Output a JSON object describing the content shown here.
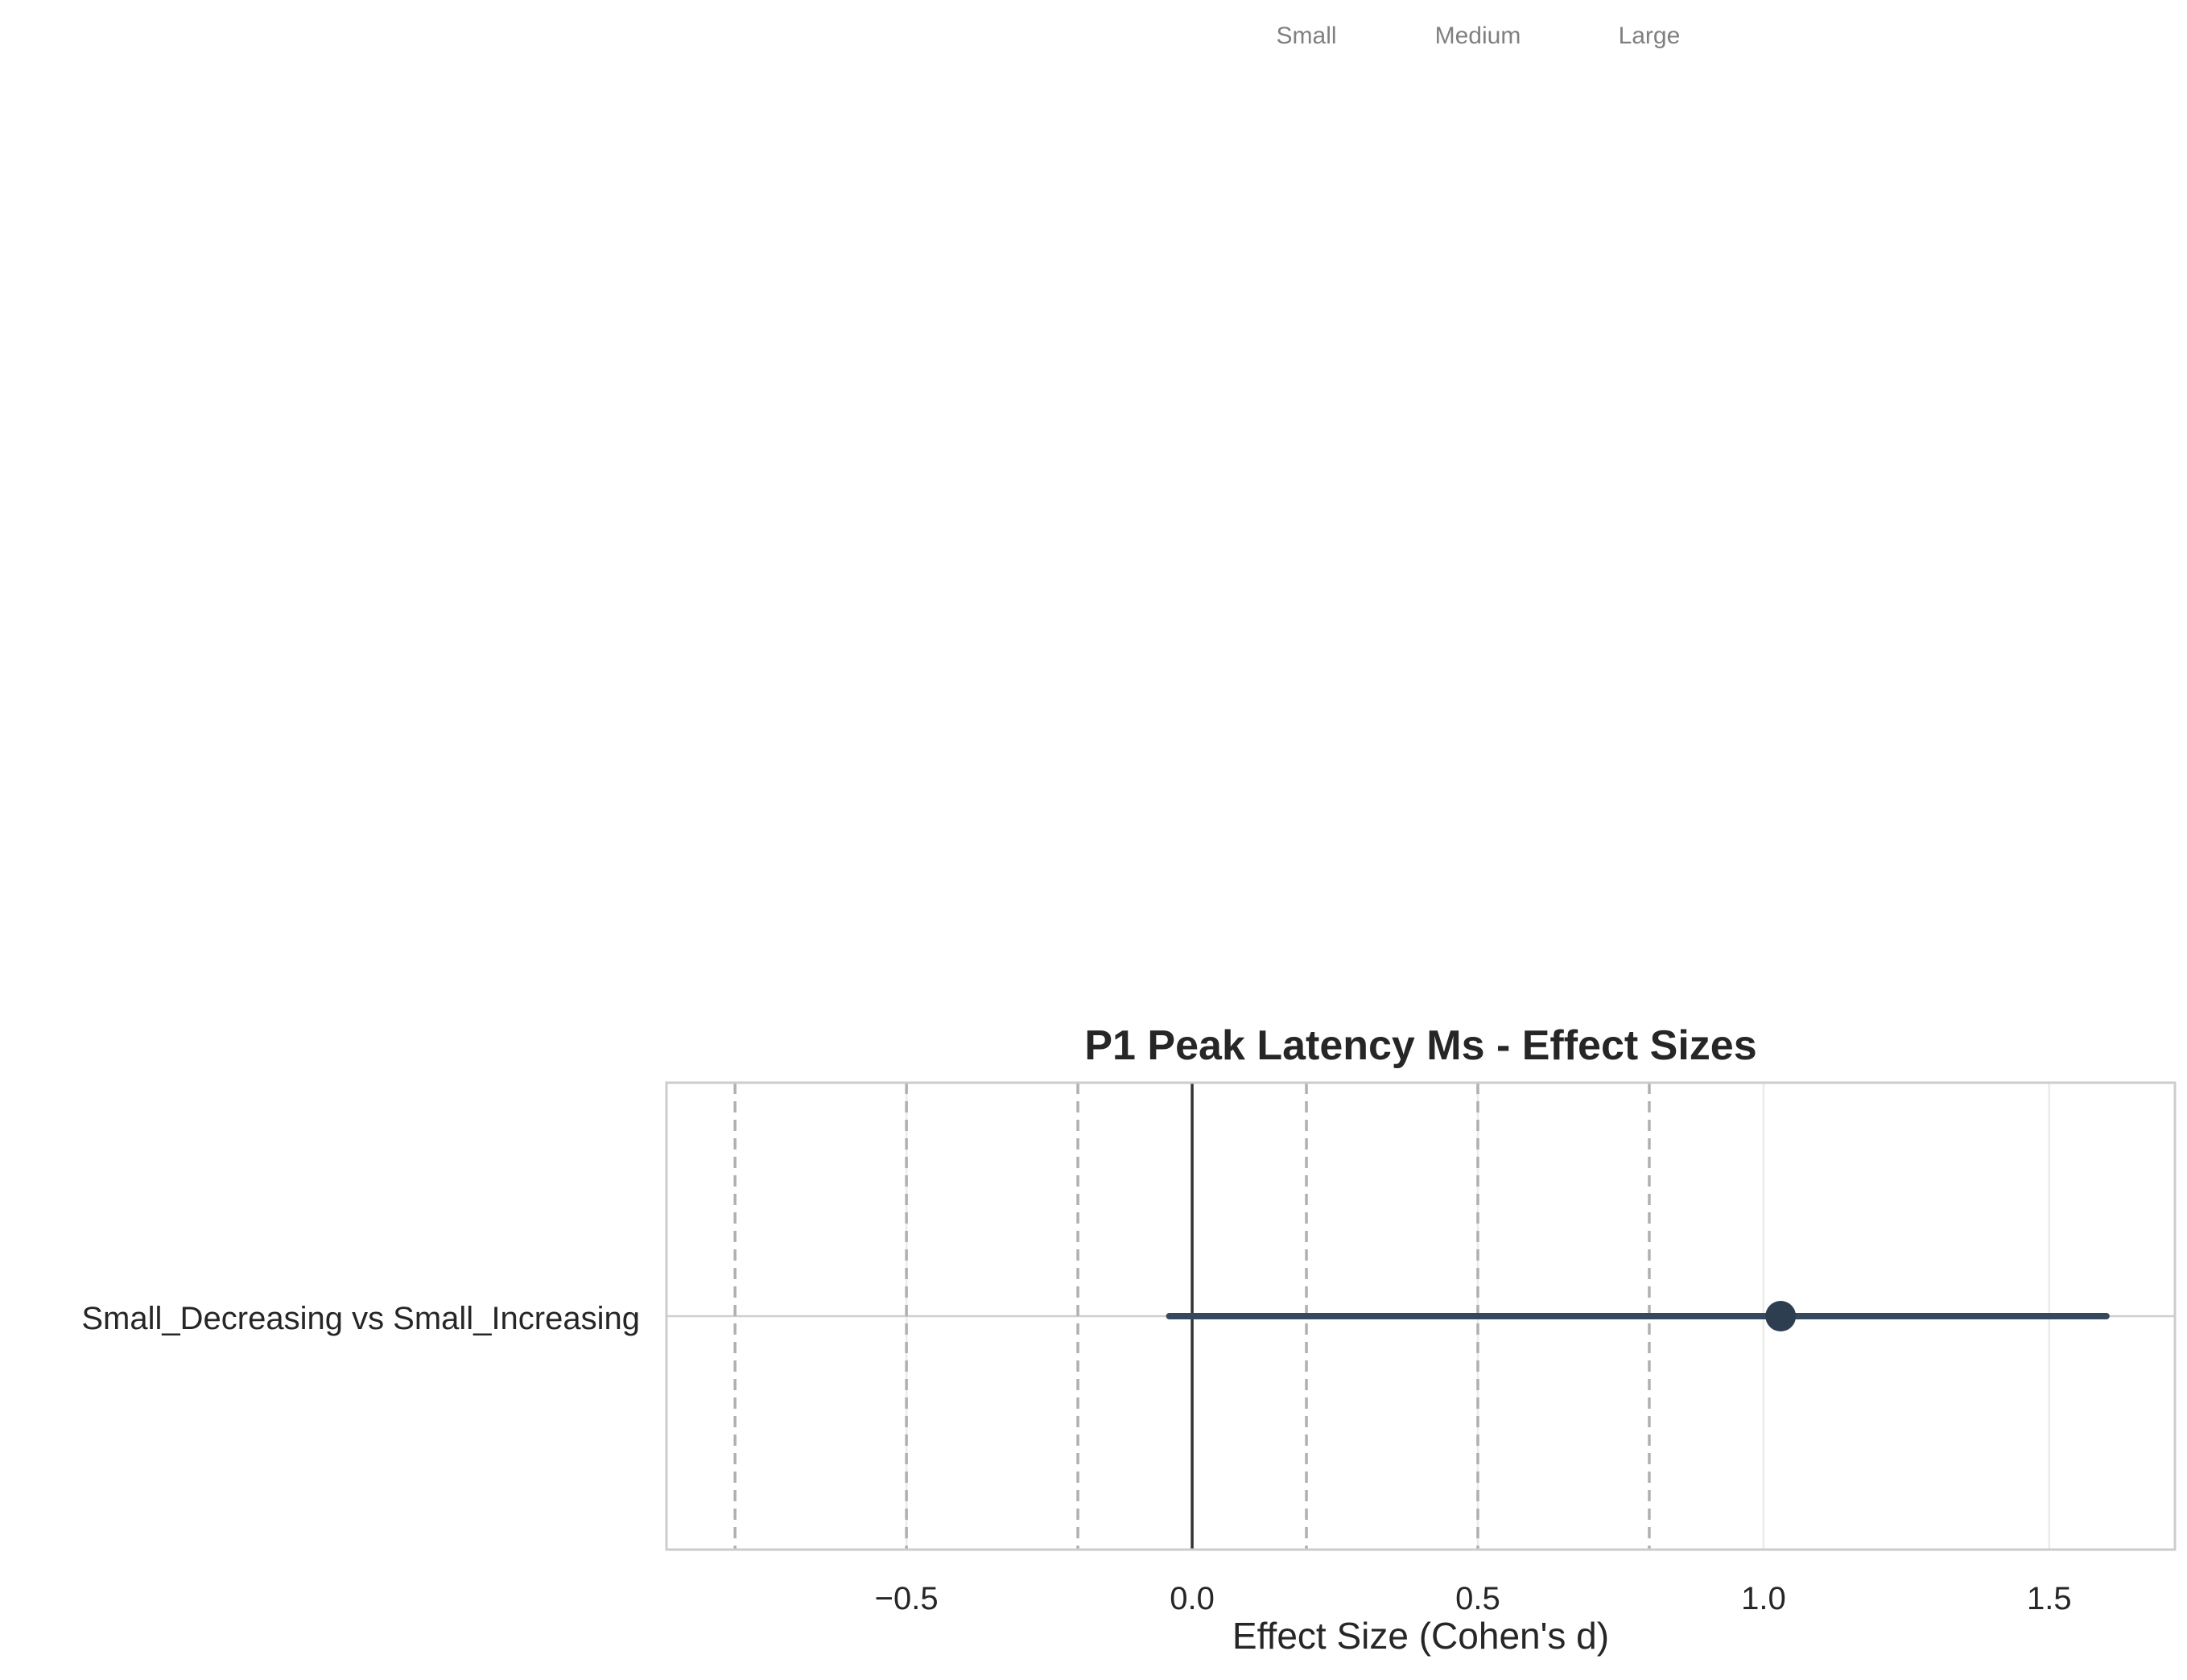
{
  "chart_data": {
    "type": "forest",
    "title": "P1 Peak Latency Ms - Effect Sizes",
    "xlabel": "Effect Size (Cohen's d)",
    "ylabel": "",
    "xlim": [
      -0.92,
      1.72
    ],
    "xticks": [
      -0.5,
      0.0,
      0.5,
      1.0,
      1.5
    ],
    "xtick_labels": [
      "−0.5",
      "0.0",
      "0.5",
      "1.0",
      "1.5"
    ],
    "grid": true,
    "rows": [
      {
        "label": "Small_Decreasing vs Small_Increasing",
        "effect": 1.03,
        "ci_low": -0.04,
        "ci_high": 1.6
      }
    ],
    "reference_line": 0.0,
    "threshold_lines": [
      -0.8,
      -0.5,
      -0.2,
      0.2,
      0.5,
      0.8
    ],
    "threshold_labels": [
      {
        "text": "Small",
        "value": 0.2
      },
      {
        "text": "Medium",
        "value": 0.5
      },
      {
        "text": "Large",
        "value": 0.8
      }
    ],
    "colors": {
      "point": "#2c3e50",
      "ci_line": "#34495e",
      "reference": "#333333",
      "threshold": "#b0b0b0",
      "grid": "#ebebeb",
      "spine": "#cccccc"
    }
  }
}
